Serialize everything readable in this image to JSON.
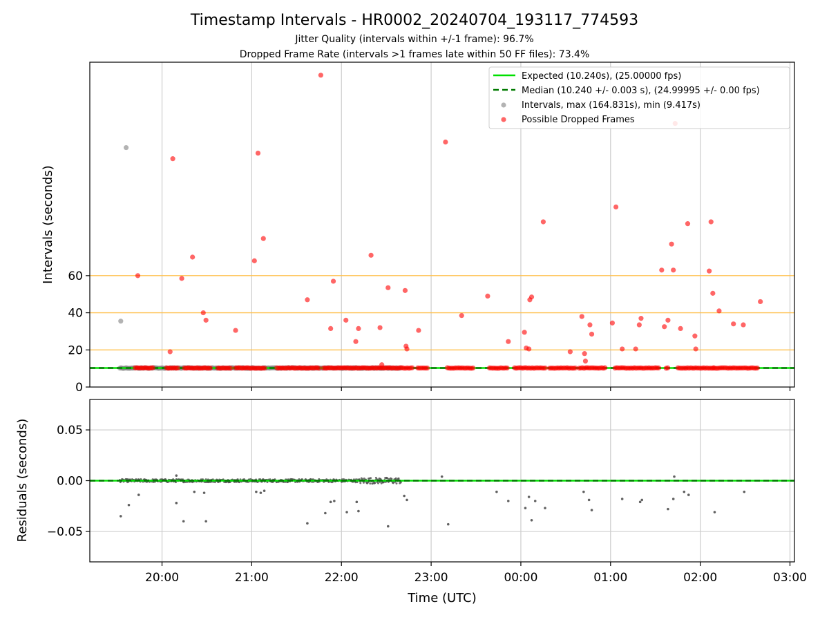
{
  "chart_data": [
    {
      "type": "scatter",
      "title": "Timestamp Intervals - HR0002_20240704_193117_774593",
      "subtitle_1": "Jitter Quality (intervals within +/-1 frame): 96.7%",
      "subtitle_2": "Dropped Frame Rate (intervals >1 frames late within 50 FF files): 73.4%",
      "ylabel": "Intervals (seconds)",
      "xlim": [
        -0.805,
        7.05
      ],
      "ylim": [
        0,
        175
      ],
      "y_ticks": [
        0,
        20,
        40,
        60
      ],
      "x_ticks": [
        0,
        1,
        2,
        3,
        4,
        5,
        6,
        7
      ],
      "x_tick_labels": [
        "20:00",
        "21:00",
        "22:00",
        "23:00",
        "00:00",
        "01:00",
        "02:00",
        "03:00"
      ],
      "x_unit": "hours after 20:00 UTC",
      "hlines_orange": [
        20,
        40,
        60
      ],
      "grid": "vertical",
      "legend_placement": "top-right",
      "legend": {
        "expected": "Expected (10.240s), (25.00000 fps)",
        "median": "Median (10.240 +/- 0.003 s), (24.99995 +/- 0.00 fps)",
        "intervals": "Intervals, max (164.831s), min (9.417s)",
        "dropped": "Possible Dropped Frames"
      },
      "expected_interval": 10.24,
      "median_interval": 10.24,
      "baseline_points_range": [
        -0.47,
        2.67
      ],
      "dropped_baseline_segments": [
        [
          -0.3,
          -0.1
        ],
        [
          0.05,
          0.18
        ],
        [
          0.25,
          0.55
        ],
        [
          0.62,
          0.78
        ],
        [
          0.82,
          1.15
        ],
        [
          1.28,
          1.75
        ],
        [
          1.8,
          2.8
        ],
        [
          2.85,
          2.97
        ],
        [
          3.18,
          3.48
        ],
        [
          3.65,
          3.85
        ],
        [
          3.93,
          4.28
        ],
        [
          4.32,
          4.62
        ],
        [
          4.65,
          4.95
        ],
        [
          5.05,
          5.55
        ],
        [
          5.62,
          5.65
        ],
        [
          5.75,
          6.15
        ],
        [
          6.15,
          6.65
        ]
      ],
      "gray_outliers": [
        [
          -0.46,
          35.5
        ],
        [
          -0.4,
          129
        ]
      ],
      "dropped_frames": [
        [
          -0.27,
          60
        ],
        [
          0.09,
          19
        ],
        [
          0.12,
          123
        ],
        [
          0.22,
          58.5
        ],
        [
          0.34,
          70
        ],
        [
          0.46,
          40
        ],
        [
          0.49,
          36
        ],
        [
          0.82,
          30.5
        ],
        [
          1.03,
          68
        ],
        [
          1.07,
          126
        ],
        [
          1.13,
          80
        ],
        [
          1.62,
          47
        ],
        [
          1.77,
          168
        ],
        [
          1.88,
          31.5
        ],
        [
          1.91,
          57
        ],
        [
          2.05,
          36
        ],
        [
          2.16,
          24.5
        ],
        [
          2.19,
          31.5
        ],
        [
          2.33,
          71
        ],
        [
          2.43,
          32
        ],
        [
          2.45,
          12
        ],
        [
          2.52,
          53.5
        ],
        [
          2.71,
          52
        ],
        [
          2.72,
          22
        ],
        [
          2.73,
          20.5
        ],
        [
          2.86,
          30.5
        ],
        [
          3.16,
          132
        ],
        [
          3.34,
          38.5
        ],
        [
          3.63,
          49
        ],
        [
          3.86,
          24.5
        ],
        [
          4.04,
          29.5
        ],
        [
          4.06,
          21
        ],
        [
          4.09,
          20.5
        ],
        [
          4.1,
          47
        ],
        [
          4.12,
          48.5
        ],
        [
          4.25,
          89
        ],
        [
          4.55,
          19
        ],
        [
          4.68,
          38
        ],
        [
          4.71,
          18
        ],
        [
          4.72,
          14
        ],
        [
          4.77,
          33.5
        ],
        [
          4.79,
          28.5
        ],
        [
          5.02,
          34.5
        ],
        [
          5.06,
          97
        ],
        [
          5.13,
          20.5
        ],
        [
          5.28,
          20.5
        ],
        [
          5.32,
          33.5
        ],
        [
          5.34,
          37
        ],
        [
          5.57,
          63
        ],
        [
          5.6,
          32.5
        ],
        [
          5.64,
          36
        ],
        [
          5.68,
          77
        ],
        [
          5.7,
          63
        ],
        [
          5.72,
          142
        ],
        [
          5.78,
          31.5
        ],
        [
          5.86,
          88
        ],
        [
          5.94,
          27.5
        ],
        [
          5.95,
          20.5
        ],
        [
          6.1,
          62.5
        ],
        [
          6.12,
          89
        ],
        [
          6.14,
          50.5
        ],
        [
          6.21,
          41
        ],
        [
          6.37,
          34
        ],
        [
          6.48,
          33.5
        ],
        [
          6.67,
          46
        ]
      ]
    },
    {
      "type": "scatter",
      "ylabel": "Residuals (seconds)",
      "xlabel": "Time (UTC)",
      "xlim": [
        -0.805,
        7.05
      ],
      "ylim": [
        -0.08,
        0.08
      ],
      "y_ticks": [
        0.05,
        0.0,
        -0.05
      ],
      "y_tick_labels": [
        "0.05",
        "0.00",
        "−0.05"
      ],
      "x_ticks": [
        0,
        1,
        2,
        3,
        4,
        5,
        6,
        7
      ],
      "x_tick_labels": [
        "20:00",
        "21:00",
        "22:00",
        "23:00",
        "00:00",
        "01:00",
        "02:00",
        "03:00"
      ],
      "grid": "both",
      "zero_line": 0,
      "dense_band_range": [
        -0.47,
        2.67
      ],
      "residual_outliers": [
        [
          -0.46,
          -0.035
        ],
        [
          -0.37,
          -0.024
        ],
        [
          -0.26,
          -0.014
        ],
        [
          0.16,
          -0.022
        ],
        [
          0.24,
          -0.04
        ],
        [
          0.36,
          -0.011
        ],
        [
          0.47,
          -0.012
        ],
        [
          0.49,
          -0.04
        ],
        [
          0.16,
          0.005
        ],
        [
          1.05,
          -0.011
        ],
        [
          1.1,
          -0.012
        ],
        [
          1.14,
          -0.01
        ],
        [
          1.62,
          -0.042
        ],
        [
          1.82,
          -0.032
        ],
        [
          1.88,
          -0.021
        ],
        [
          1.92,
          -0.02
        ],
        [
          2.06,
          -0.031
        ],
        [
          2.17,
          -0.021
        ],
        [
          2.19,
          -0.03
        ],
        [
          2.52,
          -0.045
        ],
        [
          2.7,
          -0.015
        ],
        [
          2.73,
          -0.019
        ],
        [
          3.19,
          -0.043
        ],
        [
          3.12,
          0.004
        ],
        [
          3.73,
          -0.011
        ],
        [
          3.86,
          -0.02
        ],
        [
          4.05,
          -0.027
        ],
        [
          4.09,
          -0.016
        ],
        [
          4.12,
          -0.039
        ],
        [
          4.16,
          -0.02
        ],
        [
          4.27,
          -0.027
        ],
        [
          4.7,
          -0.011
        ],
        [
          4.76,
          -0.019
        ],
        [
          4.79,
          -0.029
        ],
        [
          5.13,
          -0.018
        ],
        [
          5.33,
          -0.021
        ],
        [
          5.35,
          -0.019
        ],
        [
          5.64,
          -0.028
        ],
        [
          5.7,
          -0.018
        ],
        [
          5.82,
          -0.011
        ],
        [
          5.87,
          -0.014
        ],
        [
          6.16,
          -0.031
        ],
        [
          6.49,
          -0.011
        ],
        [
          5.71,
          0.004
        ]
      ]
    }
  ],
  "colors": {
    "expected": "#00e000",
    "median": "#007a00",
    "gray_points": "#808080",
    "dropped": "#ff0000",
    "hlines": "#ffc04d",
    "grid": "#cccccc",
    "residual_points": "#505050"
  }
}
